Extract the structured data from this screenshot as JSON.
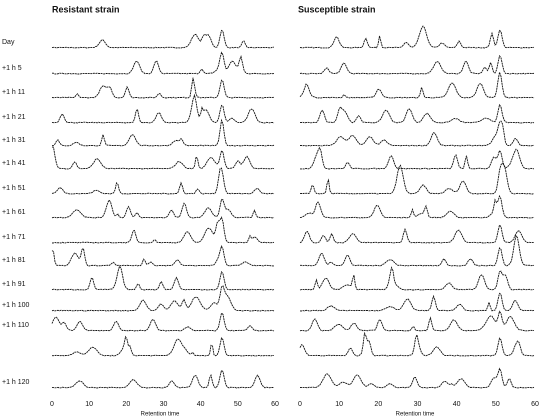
{
  "panels": [
    {
      "title": "Resistant strain",
      "axis_label": "Retention time",
      "ticks": [
        "0",
        "10",
        "20",
        "30",
        "40",
        "50",
        "60"
      ]
    },
    {
      "title": "Susceptible strain",
      "axis_label": "Retention time",
      "ticks": [
        "0",
        "10",
        "20",
        "30",
        "40",
        "50",
        "60"
      ]
    }
  ],
  "rows": [
    "Day",
    "+1 h 5",
    "+1 h 11",
    "+1 h 21",
    "+1 h 31",
    "+1 h 41",
    "+1 h 51",
    "+1 h 61",
    "+1 h 71",
    "+1 h 81",
    "+1 h 91",
    "+1 h 100",
    "+1 h 110",
    null,
    "+1 h 120"
  ]
}
